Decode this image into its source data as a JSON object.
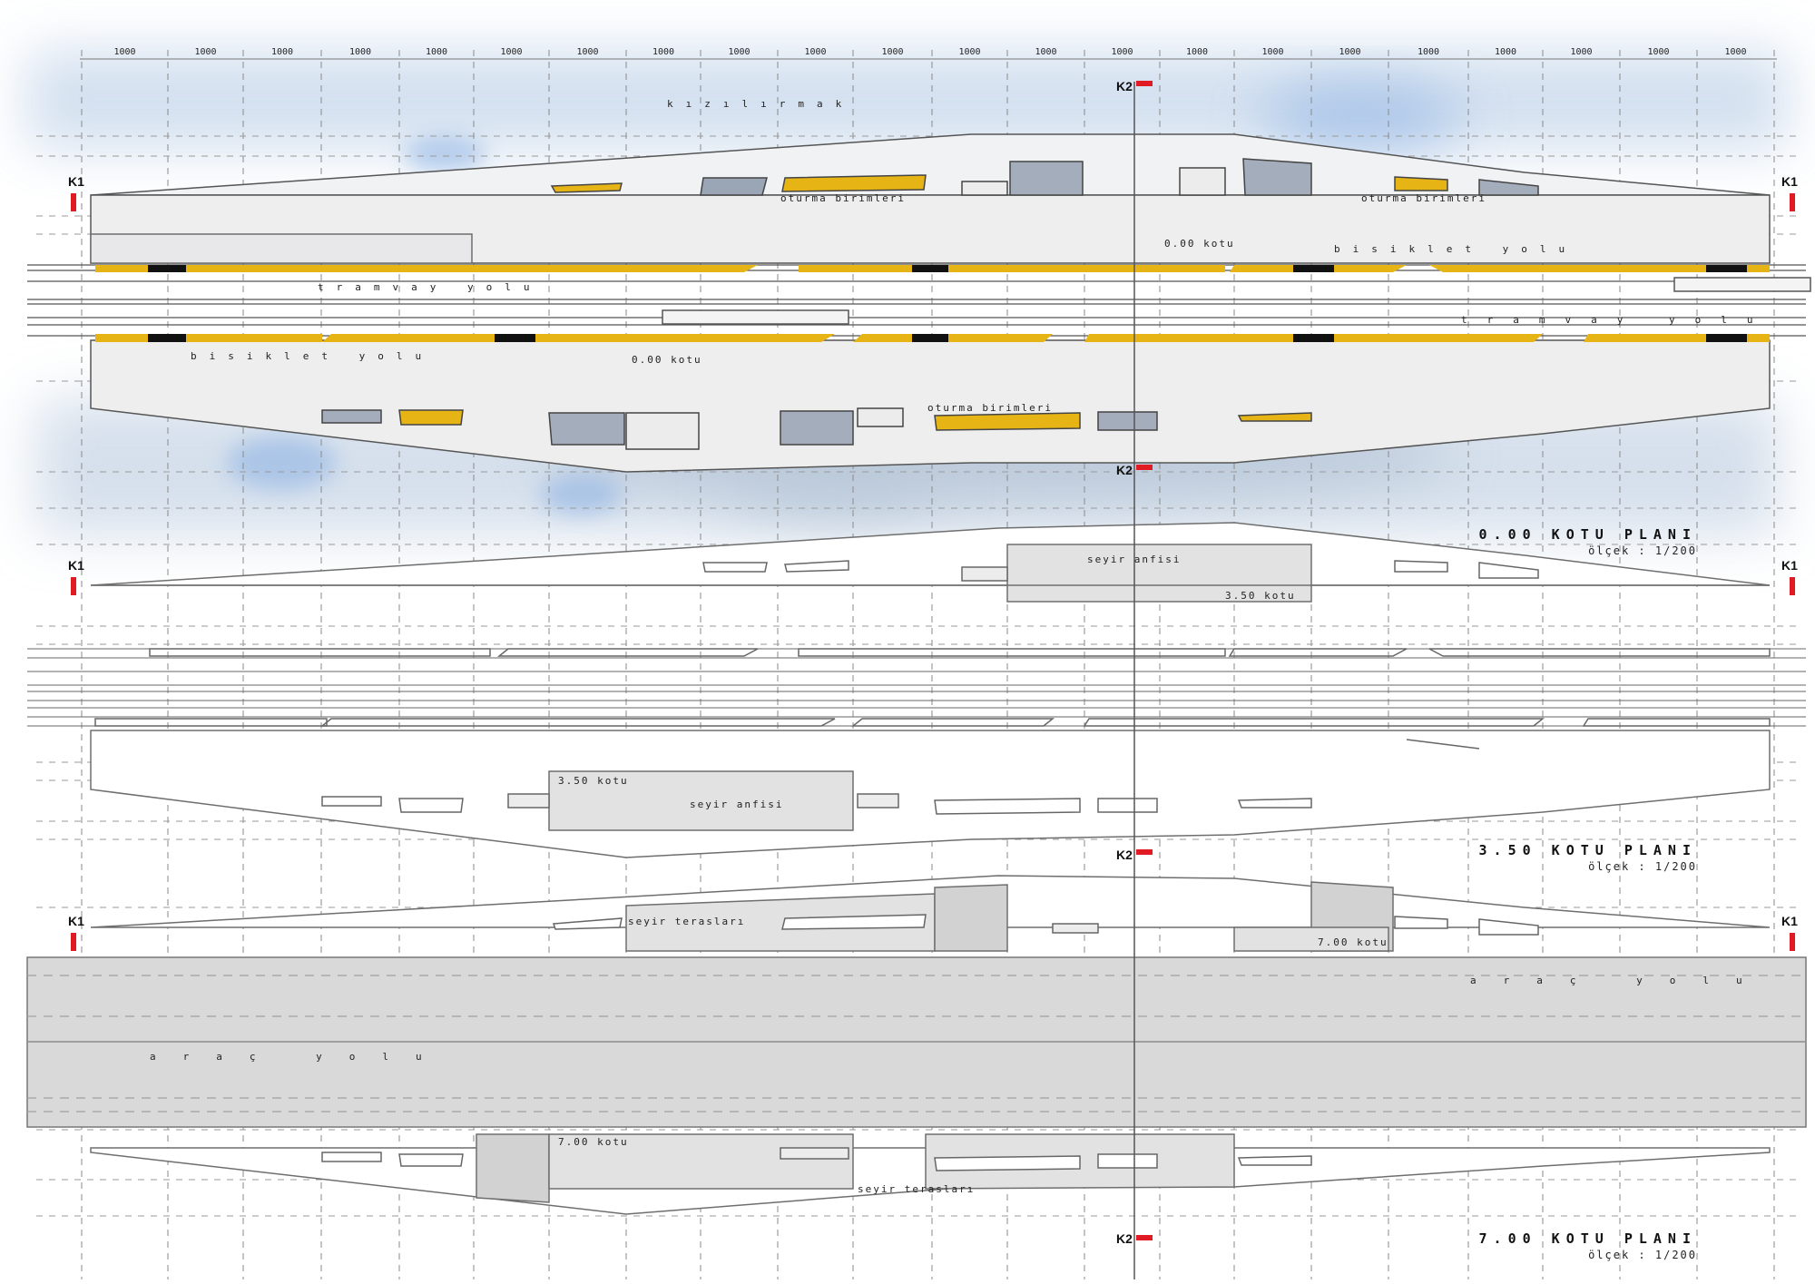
{
  "dimension_labels": [
    "1000",
    "1000",
    "1000",
    "1000",
    "1000",
    "1000",
    "1000",
    "1000",
    "1000",
    "1000",
    "1000",
    "1000",
    "1000",
    "1000",
    "1000",
    "1000",
    "1000",
    "1000",
    "1000",
    "1000",
    "1000",
    "1000"
  ],
  "section_markers": {
    "k1": "K1",
    "k2": "K2"
  },
  "colors": {
    "accent_yellow": "#e7b416",
    "marker_red": "#e01b24",
    "water_blue": "#9cc0e6",
    "road_gray": "#d9d9d9",
    "stroke": "#6e6e6e"
  },
  "plan_0": {
    "title": "0.00 KOTU PLANI",
    "scale": "ölçek : 1/200",
    "river": "kızılırmak",
    "seating_top_1": "oturma birimleri",
    "seating_top_2": "oturma birimleri",
    "seating_bottom": "oturma birimleri",
    "level_top": "0.00 kotu",
    "level_bottom": "0.00 kotu",
    "bike_top": "bisiklet yolu",
    "bike_bottom": "bisiklet yolu",
    "tram_left": "tramvay yolu",
    "tram_right": "tramvay yolu"
  },
  "plan_350": {
    "title": "3.50 KOTU PLANI",
    "scale": "ölçek : 1/200",
    "amphi_top": "seyir anfisi",
    "level_top": "3.50 kotu",
    "level_bottom": "3.50 kotu",
    "amphi_bottom": "seyir anfisi"
  },
  "plan_700": {
    "title": "7.00 KOTU PLANI",
    "scale": "ölçek : 1/200",
    "terrace_top": "seyir terasları",
    "level_top": "7.00 kotu",
    "road_right": "araç yolu",
    "road_left": "araç yolu",
    "level_bottom": "7.00 kotu",
    "terrace_bottom": "seyir terasları"
  }
}
